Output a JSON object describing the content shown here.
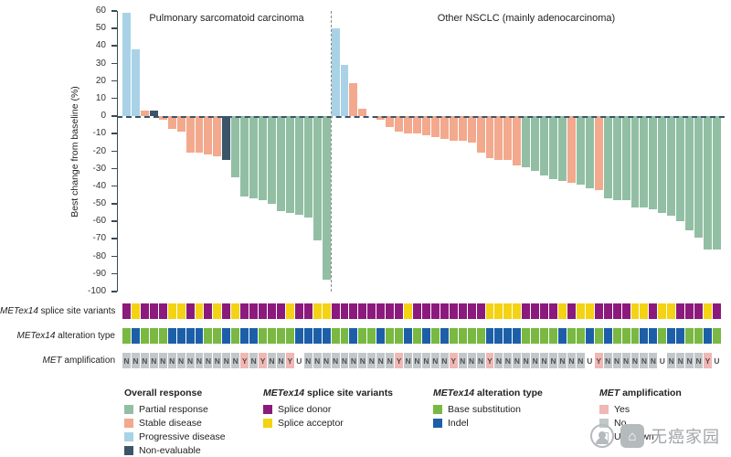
{
  "colors": {
    "partial_response": "#92bfa4",
    "stable_disease": "#f3a98d",
    "progressive_disease": "#a9d2e6",
    "non_evaluable": "#3a556a",
    "splice_donor": "#8c1a7c",
    "splice_acceptor": "#f3d313",
    "base_substitution": "#79b842",
    "indel": "#1c5fa8",
    "amp_yes": "#f0b7b4",
    "amp_no": "#c2c7ca",
    "amp_unknown": "#ffffff"
  },
  "chart_data": {
    "type": "bar",
    "subtype": "waterfall",
    "ylabel": "Best change from baseline (%)",
    "ylim": [
      -100,
      60
    ],
    "ytick_step": 10,
    "grid": false,
    "legend_position": "bottom",
    "groups": [
      {
        "label": "Pulmonary sarcomatoid carcinoma",
        "values": [
          59,
          38,
          3,
          3,
          -2,
          -7,
          -9,
          -21,
          -21,
          -22,
          -23,
          -25,
          -35,
          -46,
          -47,
          -48,
          -50,
          -54,
          -55,
          -56,
          -58,
          -71,
          -93
        ],
        "responses": [
          "PD",
          "PD",
          "SD",
          "NE",
          "SD",
          "SD",
          "SD",
          "SD",
          "SD",
          "SD",
          "SD",
          "NE",
          "PR",
          "PR",
          "PR",
          "PR",
          "PR",
          "PR",
          "PR",
          "PR",
          "PR",
          "PR",
          "PR"
        ],
        "splice_site_variant": [
          "D",
          "A",
          "D",
          "D",
          "D",
          "A",
          "A",
          "D",
          "A",
          "D",
          "A",
          "D",
          "A",
          "D",
          "D",
          "D",
          "D",
          "D",
          "A",
          "D",
          "D",
          "A",
          "A"
        ],
        "alteration_type": [
          "S",
          "I",
          "S",
          "S",
          "S",
          "I",
          "I",
          "I",
          "I",
          "S",
          "S",
          "I",
          "S",
          "I",
          "I",
          "S",
          "S",
          "S",
          "S",
          "I",
          "I",
          "I",
          "I"
        ],
        "met_amplification": [
          "N",
          "N",
          "N",
          "N",
          "N",
          "N",
          "N",
          "N",
          "N",
          "N",
          "N",
          "N",
          "N",
          "Y",
          "N",
          "Y",
          "N",
          "N",
          "Y",
          "U",
          "N",
          "N",
          "N"
        ]
      },
      {
        "label": "Other NSCLC (mainly adenocarcinoma)",
        "values": [
          50,
          29,
          19,
          4,
          0,
          -2,
          -6,
          -9,
          -10,
          -10,
          -11,
          -12,
          -13,
          -14,
          -14,
          -15,
          -21,
          -24,
          -25,
          -25,
          -28,
          -29,
          -31,
          -34,
          -36,
          -37,
          -38,
          -39,
          -41,
          -42,
          -47,
          -48,
          -48,
          -52,
          -52,
          -53,
          -55,
          -57,
          -60,
          -65,
          -69,
          -76,
          -76
        ],
        "responses": [
          "PD",
          "PD",
          "SD",
          "SD",
          "SD",
          "SD",
          "SD",
          "SD",
          "SD",
          "SD",
          "SD",
          "SD",
          "SD",
          "SD",
          "SD",
          "SD",
          "SD",
          "SD",
          "SD",
          "SD",
          "SD",
          "PR",
          "PR",
          "PR",
          "PR",
          "PR",
          "SD",
          "PR",
          "PR",
          "SD",
          "PR",
          "PR",
          "PR",
          "PR",
          "PR",
          "PR",
          "PR",
          "PR",
          "PR",
          "PR",
          "PR",
          "PR",
          "PR"
        ],
        "splice_site_variant": [
          "D",
          "D",
          "D",
          "D",
          "D",
          "D",
          "D",
          "D",
          "A",
          "D",
          "D",
          "D",
          "D",
          "D",
          "D",
          "D",
          "D",
          "A",
          "A",
          "A",
          "A",
          "D",
          "D",
          "D",
          "D",
          "A",
          "D",
          "A",
          "A",
          "D",
          "D",
          "D",
          "D",
          "A",
          "A",
          "D",
          "A",
          "A",
          "D",
          "D",
          "D",
          "A",
          "D"
        ],
        "alteration_type": [
          "S",
          "S",
          "I",
          "S",
          "S",
          "I",
          "S",
          "S",
          "I",
          "S",
          "I",
          "S",
          "I",
          "S",
          "S",
          "S",
          "S",
          "I",
          "I",
          "I",
          "I",
          "S",
          "S",
          "S",
          "S",
          "I",
          "S",
          "S",
          "I",
          "S",
          "I",
          "S",
          "S",
          "S",
          "I",
          "I",
          "S",
          "I",
          "I",
          "S",
          "S",
          "I",
          "S"
        ],
        "met_amplification": [
          "N",
          "N",
          "N",
          "N",
          "N",
          "N",
          "N",
          "Y",
          "N",
          "N",
          "N",
          "N",
          "N",
          "Y",
          "N",
          "N",
          "N",
          "Y",
          "N",
          "N",
          "N",
          "N",
          "N",
          "N",
          "N",
          "N",
          "N",
          "N",
          "U",
          "Y",
          "N",
          "N",
          "N",
          "N",
          "N",
          "N",
          "U",
          "N",
          "N",
          "N",
          "N",
          "Y",
          "U"
        ]
      }
    ]
  },
  "tracks": [
    {
      "label_italic": "METex14",
      "label_rest": " splice site variants",
      "key": "splice_site_variant"
    },
    {
      "label_italic": "METex14",
      "label_rest": " alteration type",
      "key": "alteration_type"
    },
    {
      "label_italic": "MET",
      "label_rest": " amplification",
      "key": "met_amplification"
    }
  ],
  "legend": {
    "columns": [
      {
        "title_italic": "",
        "title_rest": "Overall response",
        "items": [
          {
            "label": "Partial response",
            "color": "partial_response"
          },
          {
            "label": "Stable disease",
            "color": "stable_disease"
          },
          {
            "label": "Progressive disease",
            "color": "progressive_disease"
          },
          {
            "label": "Non-evaluable",
            "color": "non_evaluable"
          }
        ]
      },
      {
        "title_italic": "METex14",
        "title_rest": " splice site variants",
        "items": [
          {
            "label": "Splice donor",
            "color": "splice_donor"
          },
          {
            "label": "Splice acceptor",
            "color": "splice_acceptor"
          }
        ]
      },
      {
        "title_italic": "METex14",
        "title_rest": " alteration type",
        "items": [
          {
            "label": "Base substitution",
            "color": "base_substitution"
          },
          {
            "label": "Indel",
            "color": "indel"
          }
        ]
      },
      {
        "title_italic": "MET",
        "title_rest": " amplification",
        "items": [
          {
            "label": "Yes",
            "color": "amp_yes"
          },
          {
            "label": "No",
            "color": "amp_no"
          },
          {
            "label": "Unknown",
            "color": "amp_unknown"
          }
        ]
      }
    ]
  },
  "watermark": {
    "text": "无癌家园"
  }
}
